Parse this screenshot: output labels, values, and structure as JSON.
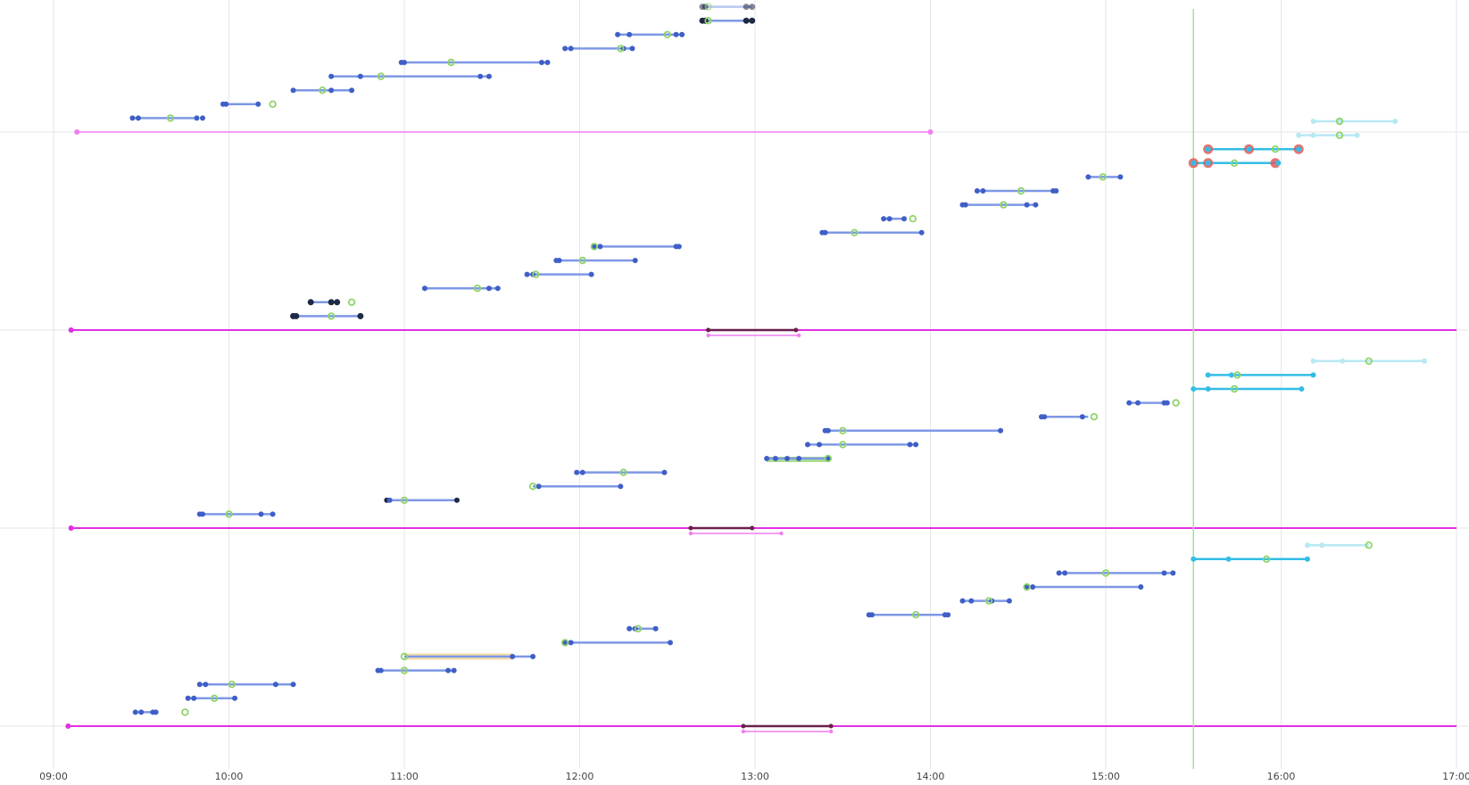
{
  "chart_data": {
    "type": "timeline",
    "x_axis": {
      "min": "09:00",
      "max": "17:00",
      "ticks": [
        "09:00",
        "10:00",
        "11:00",
        "12:00",
        "13:00",
        "14:00",
        "15:00",
        "16:00",
        "17:00"
      ]
    },
    "grid": true,
    "colors": {
      "task_bar": "#7e98e6",
      "task_point": "#3f5fc7",
      "task_point_dark": "#1f2a44",
      "accent_green": "#8fd46a",
      "task_bar_cyan": "#33bde6",
      "task_bar_cyan_light": "#b9e8f4",
      "alert_red": "#e05a5a",
      "lane_magenta": "#e22fe2",
      "lane_magenta_light": "#f07ef0",
      "span_dark": "#6a1f4d",
      "highlight_orange": "#f3dca8",
      "now_line": "#9ee29e"
    },
    "now_marker": "15:30",
    "lanes": [
      {
        "baseline": {
          "start": "09:08",
          "end": "14:00",
          "style": "light"
        },
        "center_span": null,
        "tasks": [
          {
            "start": "09:27",
            "end": "09:49",
            "points": [
              "09:27",
              "09:29",
              "09:49",
              "09:51"
            ],
            "mark": "09:40"
          },
          {
            "start": "09:58",
            "end": "10:10",
            "points": [
              "09:58",
              "09:59",
              "10:10"
            ],
            "mark": "10:15",
            "mark_free": true
          },
          {
            "start": "10:22",
            "end": "10:42",
            "points": [
              "10:22",
              "10:35",
              "10:42"
            ],
            "mark": "10:32"
          },
          {
            "start": "10:35",
            "end": "11:29",
            "points": [
              "10:35",
              "10:45",
              "11:26",
              "11:29"
            ],
            "mark": "10:52"
          },
          {
            "start": "10:59",
            "end": "11:49",
            "points": [
              "10:59",
              "11:00",
              "11:47",
              "11:49"
            ],
            "mark": "11:16"
          },
          {
            "start": "11:55",
            "end": "12:18",
            "points": [
              "11:55",
              "11:57",
              "12:15",
              "12:18"
            ],
            "mark": "12:14"
          },
          {
            "start": "12:13",
            "end": "12:35",
            "points": [
              "12:13",
              "12:17",
              "12:33",
              "12:35"
            ],
            "mark": "12:30"
          },
          {
            "start": "12:42",
            "end": "12:59",
            "points": [
              "12:42",
              "12:43",
              "12:57",
              "12:59"
            ],
            "mark": "12:44",
            "dark": true
          },
          {
            "start": "12:42",
            "end": "12:59",
            "points": [
              "12:42",
              "12:43",
              "12:57",
              "12:59"
            ],
            "mark": "12:44",
            "dark": true,
            "faded": true
          }
        ]
      },
      {
        "baseline": {
          "start": "09:06",
          "end": "17:00",
          "style": "main"
        },
        "center_span": {
          "start": "12:44",
          "end": "13:14",
          "sub_end": "13:15"
        },
        "tasks": [
          {
            "start": "10:22",
            "end": "10:45",
            "points": [
              "10:22",
              "10:23",
              "10:45"
            ],
            "mark": "10:35",
            "dark": true
          },
          {
            "start": "10:28",
            "end": "10:37",
            "points": [
              "10:28",
              "10:35",
              "10:37"
            ],
            "mark": "10:42",
            "mark_free": true,
            "dark": true
          },
          {
            "start": "11:07",
            "end": "11:32",
            "points": [
              "11:07",
              "11:29",
              "11:32"
            ],
            "mark": "11:25"
          },
          {
            "start": "11:42",
            "end": "12:04",
            "points": [
              "11:42",
              "11:44",
              "12:04"
            ],
            "mark": "11:45"
          },
          {
            "start": "11:52",
            "end": "12:19",
            "points": [
              "11:52",
              "11:53",
              "12:19"
            ],
            "mark": "12:01"
          },
          {
            "start": "12:05",
            "end": "12:34",
            "points": [
              "12:05",
              "12:07",
              "12:33",
              "12:34"
            ],
            "mark": "12:05"
          },
          {
            "start": "13:23",
            "end": "13:57",
            "points": [
              "13:23",
              "13:24",
              "13:57"
            ],
            "mark": "13:34"
          },
          {
            "start": "13:44",
            "end": "13:51",
            "points": [
              "13:44",
              "13:46",
              "13:51"
            ],
            "mark": "13:54",
            "mark_free": true
          },
          {
            "start": "14:11",
            "end": "14:36",
            "points": [
              "14:11",
              "14:12",
              "14:33",
              "14:36"
            ],
            "mark": "14:25"
          },
          {
            "start": "14:16",
            "end": "14:43",
            "points": [
              "14:16",
              "14:18",
              "14:42",
              "14:43"
            ],
            "mark": "14:31"
          },
          {
            "start": "14:54",
            "end": "15:05",
            "points": [
              "14:54",
              "15:05"
            ],
            "mark": "14:59"
          },
          {
            "start": "15:30",
            "end": "15:59",
            "points": [
              "15:30",
              "15:35",
              "15:59"
            ],
            "mark": "15:44",
            "cyan": true,
            "alert": [
              "15:30",
              "15:35",
              "15:58"
            ]
          },
          {
            "start": "15:35",
            "end": "16:06",
            "points": [
              "15:35",
              "15:49",
              "16:06"
            ],
            "mark": "15:58",
            "cyan": true,
            "alert": [
              "15:35",
              "15:49",
              "16:06"
            ]
          },
          {
            "start": "16:06",
            "end": "16:26",
            "points": [
              "16:06",
              "16:11",
              "16:26"
            ],
            "mark": "16:20",
            "cyan_light": true
          },
          {
            "start": "16:11",
            "end": "16:39",
            "points": [
              "16:11",
              "16:20",
              "16:39"
            ],
            "mark": "16:20",
            "cyan_light": true
          }
        ]
      },
      {
        "baseline": {
          "start": "09:06",
          "end": "17:00",
          "style": "main"
        },
        "center_span": {
          "start": "12:38",
          "end": "12:59",
          "sub_end": "13:09"
        },
        "tasks": [
          {
            "start": "09:50",
            "end": "10:15",
            "points": [
              "09:50",
              "09:51",
              "10:11",
              "10:15"
            ],
            "mark": "10:00"
          },
          {
            "start": "10:54",
            "end": "11:18",
            "points": [
              "10:54",
              "10:55",
              "11:18"
            ],
            "mark": "11:00",
            "dark_ends": true
          },
          {
            "start": "11:44",
            "end": "12:14",
            "points": [
              "11:46",
              "12:14"
            ],
            "mark": "11:44"
          },
          {
            "start": "11:59",
            "end": "12:29",
            "points": [
              "11:59",
              "12:01",
              "12:29"
            ],
            "mark": "12:15"
          },
          {
            "start": "13:04",
            "end": "13:25",
            "points": [
              "13:04",
              "13:07",
              "13:11",
              "13:15",
              "13:25"
            ],
            "mark": "13:25",
            "green_band": true
          },
          {
            "start": "13:18",
            "end": "13:55",
            "points": [
              "13:18",
              "13:22",
              "13:53",
              "13:55"
            ],
            "mark": "13:30"
          },
          {
            "start": "13:24",
            "end": "14:24",
            "points": [
              "13:24",
              "13:25",
              "14:24"
            ],
            "mark": "13:30"
          },
          {
            "start": "14:38",
            "end": "14:54",
            "points": [
              "14:38",
              "14:39",
              "14:52"
            ],
            "mark": "14:56",
            "mark_free": true
          },
          {
            "start": "15:08",
            "end": "15:21",
            "points": [
              "15:08",
              "15:11",
              "15:20",
              "15:21"
            ],
            "mark": "15:24",
            "mark_free": true
          },
          {
            "start": "15:30",
            "end": "16:07",
            "points": [
              "15:30",
              "15:35",
              "16:07"
            ],
            "mark": "15:44",
            "cyan": true
          },
          {
            "start": "15:35",
            "end": "16:11",
            "points": [
              "15:35",
              "15:43",
              "16:11"
            ],
            "mark": "15:45",
            "cyan": true
          },
          {
            "start": "16:11",
            "end": "16:49",
            "points": [
              "16:11",
              "16:21",
              "16:49"
            ],
            "mark": "16:30",
            "cyan_light": true
          }
        ]
      },
      {
        "baseline": {
          "start": "09:05",
          "end": "17:00",
          "style": "main"
        },
        "center_span": {
          "start": "12:56",
          "end": "13:26",
          "sub_end": "13:26"
        },
        "tasks": [
          {
            "start": "09:28",
            "end": "09:35",
            "points": [
              "09:28",
              "09:30",
              "09:34",
              "09:35"
            ],
            "mark": "09:45",
            "mark_free": true
          },
          {
            "start": "09:46",
            "end": "10:02",
            "points": [
              "09:46",
              "09:48",
              "10:02"
            ],
            "mark": "09:55"
          },
          {
            "start": "09:50",
            "end": "10:22",
            "points": [
              "09:50",
              "09:52",
              "10:16",
              "10:22"
            ],
            "mark": "10:01"
          },
          {
            "start": "10:51",
            "end": "11:17",
            "points": [
              "10:51",
              "10:52",
              "11:15",
              "11:17"
            ],
            "mark": "11:00"
          },
          {
            "start": "11:00",
            "end": "11:44",
            "points": [
              "11:37",
              "11:44"
            ],
            "mark": "11:00",
            "orange_band": [
              "11:00",
              "11:37"
            ]
          },
          {
            "start": "11:55",
            "end": "12:31",
            "points": [
              "11:55",
              "11:57",
              "12:31"
            ],
            "mark": "11:55"
          },
          {
            "start": "12:17",
            "end": "12:26",
            "points": [
              "12:17",
              "12:19",
              "12:26"
            ],
            "mark": "12:20"
          },
          {
            "start": "13:39",
            "end": "14:06",
            "points": [
              "13:39",
              "13:40",
              "14:05",
              "14:06"
            ],
            "mark": "13:55"
          },
          {
            "start": "14:11",
            "end": "14:27",
            "points": [
              "14:11",
              "14:14",
              "14:21",
              "14:27"
            ],
            "mark": "14:20"
          },
          {
            "start": "14:33",
            "end": "15:12",
            "points": [
              "14:33",
              "14:35",
              "15:12"
            ],
            "mark": "14:33"
          },
          {
            "start": "14:44",
            "end": "15:23",
            "points": [
              "14:44",
              "14:46",
              "15:20",
              "15:23"
            ],
            "mark": "15:00"
          },
          {
            "start": "15:30",
            "end": "16:09",
            "points": [
              "15:30",
              "15:42",
              "16:09"
            ],
            "mark": "15:55",
            "cyan": true
          },
          {
            "start": "16:09",
            "end": "16:30",
            "points": [
              "16:09",
              "16:14"
            ],
            "mark": "16:30",
            "cyan_light": true
          }
        ]
      }
    ]
  }
}
